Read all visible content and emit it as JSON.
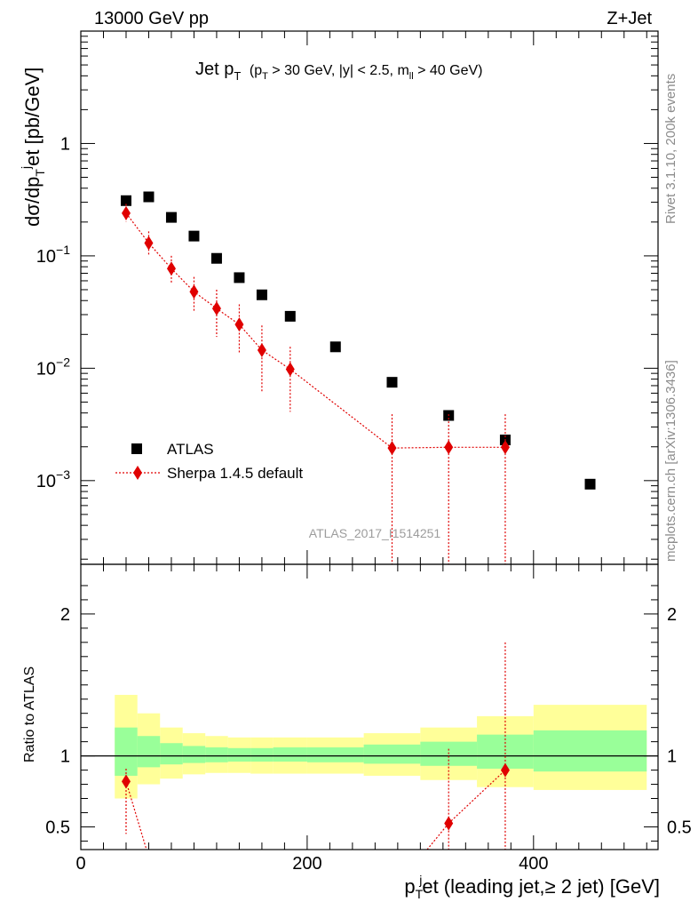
{
  "header": {
    "left": "13000 GeV pp",
    "right": "Z+Jet"
  },
  "plot_title": {
    "main": "Jet p",
    "sub_T": "T",
    "cuts": "(p",
    "cuts_T": "T",
    "cuts_rest": " > 30 GeV, |y| < 2.5, m",
    "cuts_ll": "ll",
    "cuts_end": " > 40 GeV)"
  },
  "side_text": {
    "rivet": "Rivet 3.1.10,  200k events",
    "mcplots": "mcplots.cern.ch [arXiv:1306.3436]"
  },
  "analysis_label": "ATLAS_2017_I1514251",
  "y_axis_main": {
    "label_pre": "dσ/dp",
    "label_T": "T",
    "label_j": "j",
    "label_post": "et [pb/GeV]"
  },
  "y_axis_ratio": {
    "label": "Ratio to ATLAS"
  },
  "x_axis": {
    "label_pre": "p",
    "label_T": "T",
    "label_j": "j",
    "label_post": "et (leading jet,≥ 2 jet) [GeV]"
  },
  "legend": {
    "atlas": "ATLAS",
    "sherpa": "Sherpa 1.4.5 default"
  },
  "colors": {
    "atlas": "#000000",
    "sherpa": "#e00000",
    "band_inner": "#99ff99",
    "band_outer": "#ffff99"
  },
  "chart_data": [
    {
      "type": "scatter",
      "yscale": "log",
      "xlim": [
        0,
        510
      ],
      "ylim": [
        0.00018,
        10
      ],
      "y_ticks": [
        {
          "value": 1,
          "label": "1",
          "base": "",
          "exp": ""
        },
        {
          "value": 0.1,
          "label": "",
          "base": "10",
          "exp": "−1"
        },
        {
          "value": 0.01,
          "label": "",
          "base": "10",
          "exp": "−2"
        },
        {
          "value": 0.001,
          "label": "",
          "base": "10",
          "exp": "−3"
        }
      ],
      "series": [
        {
          "name": "ATLAS",
          "x": [
            40,
            60,
            80,
            100,
            120,
            140,
            160,
            185,
            225,
            275,
            325,
            375,
            450
          ],
          "y": [
            0.31,
            0.335,
            0.22,
            0.15,
            0.095,
            0.064,
            0.045,
            0.029,
            0.0155,
            0.0075,
            0.0038,
            0.0023,
            0.00093
          ]
        },
        {
          "name": "Sherpa 1.4.5 default",
          "x": [
            40,
            60,
            80,
            100,
            120,
            140,
            160,
            185,
            275,
            325,
            375
          ],
          "y": [
            0.24,
            0.13,
            0.077,
            0.048,
            0.034,
            0.0245,
            0.0145,
            0.0098,
            0.00195,
            0.00198,
            0.00198
          ],
          "err_lo": [
            0.2,
            0.1,
            0.057,
            0.032,
            0.019,
            0.0135,
            0.0062,
            0.0041,
            1e-05,
            1e-05,
            1e-05
          ],
          "err_hi": [
            0.29,
            0.165,
            0.1,
            0.065,
            0.05,
            0.037,
            0.024,
            0.0155,
            0.0039,
            0.0039,
            0.0039
          ]
        }
      ]
    },
    {
      "type": "line",
      "xlim": [
        0,
        510
      ],
      "ylim": [
        0.34,
        2.35
      ],
      "x_ticks": [
        0,
        200,
        400
      ],
      "y_ticks": [
        0.5,
        1,
        2
      ],
      "bands": [
        {
          "x0": 30,
          "x1": 50,
          "inner": [
            0.86,
            1.2
          ],
          "outer": [
            0.7,
            1.43
          ]
        },
        {
          "x0": 50,
          "x1": 70,
          "inner": [
            0.92,
            1.14
          ],
          "outer": [
            0.8,
            1.3
          ]
        },
        {
          "x0": 70,
          "x1": 90,
          "inner": [
            0.94,
            1.09
          ],
          "outer": [
            0.84,
            1.2
          ]
        },
        {
          "x0": 90,
          "x1": 110,
          "inner": [
            0.95,
            1.07
          ],
          "outer": [
            0.87,
            1.16
          ]
        },
        {
          "x0": 110,
          "x1": 130,
          "inner": [
            0.955,
            1.06
          ],
          "outer": [
            0.88,
            1.14
          ]
        },
        {
          "x0": 130,
          "x1": 150,
          "inner": [
            0.96,
            1.055
          ],
          "outer": [
            0.88,
            1.13
          ]
        },
        {
          "x0": 150,
          "x1": 170,
          "inner": [
            0.96,
            1.055
          ],
          "outer": [
            0.875,
            1.13
          ]
        },
        {
          "x0": 170,
          "x1": 200,
          "inner": [
            0.96,
            1.06
          ],
          "outer": [
            0.875,
            1.13
          ]
        },
        {
          "x0": 200,
          "x1": 250,
          "inner": [
            0.955,
            1.06
          ],
          "outer": [
            0.875,
            1.13
          ]
        },
        {
          "x0": 250,
          "x1": 300,
          "inner": [
            0.945,
            1.08
          ],
          "outer": [
            0.86,
            1.16
          ]
        },
        {
          "x0": 300,
          "x1": 350,
          "inner": [
            0.93,
            1.1
          ],
          "outer": [
            0.83,
            1.2
          ]
        },
        {
          "x0": 350,
          "x1": 400,
          "inner": [
            0.91,
            1.15
          ],
          "outer": [
            0.78,
            1.28
          ]
        },
        {
          "x0": 400,
          "x1": 500,
          "inner": [
            0.89,
            1.18
          ],
          "outer": [
            0.76,
            1.36
          ]
        }
      ],
      "series": [
        {
          "name": "Sherpa 1.4.5 default",
          "x": [
            40,
            325,
            375
          ],
          "y": [
            0.82,
            0.525,
            0.9
          ],
          "err_lo": [
            0.45,
            0.001,
            0.001
          ],
          "err_hi": [
            0.91,
            1.05,
            1.8
          ],
          "offscale_line": [
            {
              "from_x": 40,
              "from_y": 0.82,
              "to_x": 58,
              "to_y": 0.34
            },
            {
              "from_x": 306,
              "from_y": 0.34,
              "to_x": 325,
              "to_y": 0.525
            }
          ]
        }
      ]
    }
  ]
}
